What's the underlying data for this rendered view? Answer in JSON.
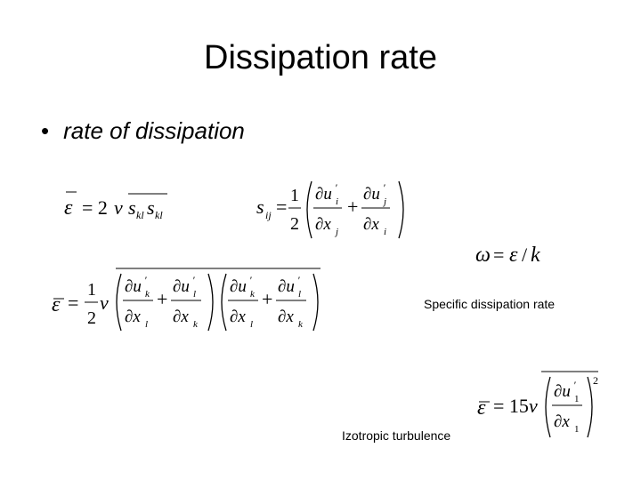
{
  "slide": {
    "title": "Dissipation rate",
    "bullet": "rate of dissipation",
    "captions": {
      "specific": "Specific dissipation rate",
      "isotropic": "Izotropic turbulence"
    }
  },
  "colors": {
    "background": "#ffffff",
    "text": "#000000"
  }
}
